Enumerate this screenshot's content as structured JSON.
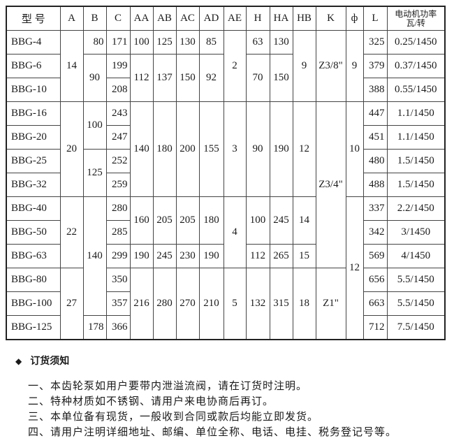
{
  "headers": [
    "型 号",
    "A",
    "B",
    "C",
    "AA",
    "AB",
    "AC",
    "AD",
    "AE",
    "H",
    "HA",
    "HB",
    "K",
    "ф",
    "L",
    "电动机功率",
    "瓦/转"
  ],
  "models": [
    "BBG-4",
    "BBG-6",
    "BBG-10",
    "BBG-16",
    "BBG-20",
    "BBG-25",
    "BBG-32",
    "BBG-40",
    "BBG-50",
    "BBG-63",
    "BBG-80",
    "BBG-100",
    "BBG-125"
  ],
  "A": [
    "14",
    "20",
    "22",
    "27"
  ],
  "B": [
    "80",
    "90",
    "100",
    "125",
    "140",
    "178"
  ],
  "C": [
    "171",
    "199",
    "208",
    "243",
    "247",
    "252",
    "259",
    "280",
    "285",
    "299",
    "350",
    "357",
    "366"
  ],
  "AA": [
    "100",
    "112",
    "140",
    "160",
    "190",
    "216"
  ],
  "AB": [
    "125",
    "137",
    "180",
    "205",
    "245",
    "280"
  ],
  "AC": [
    "130",
    "150",
    "200",
    "205",
    "230",
    "270"
  ],
  "AD": [
    "85",
    "92",
    "155",
    "180",
    "190",
    "210"
  ],
  "AE": [
    "2",
    "3",
    "4",
    "5"
  ],
  "H": [
    "63",
    "70",
    "90",
    "100",
    "112",
    "132"
  ],
  "HA": [
    "130",
    "150",
    "190",
    "245",
    "265",
    "315"
  ],
  "HB": [
    "9",
    "12",
    "14",
    "15",
    "18"
  ],
  "K": [
    "Z3/8\"",
    "Z3/4\"",
    "Z1\""
  ],
  "phi": [
    "9",
    "10",
    "12"
  ],
  "L": [
    "325",
    "379",
    "388",
    "447",
    "451",
    "480",
    "488",
    "337",
    "342",
    "569",
    "656",
    "663",
    "712"
  ],
  "power": [
    "0.25/1450",
    "0.37/1450",
    "0.55/1450",
    "1.1/1450",
    "1.1/1450",
    "1.5/1450",
    "1.5/1450",
    "2.2/1450",
    "3/1450",
    "4/1450",
    "5.5/1450",
    "5.5/1450",
    "7.5/1450"
  ],
  "notes": {
    "title": "订货须知",
    "bullet_icon": "diamond-icon",
    "items": [
      "一、本齿轮泵如用户要带内泄溢流阀，请在订货时注明。",
      "二、特种材质如不锈钢、请用户来电协商后再订。",
      "三、本单位备有现货，一般收到合同或款后均能立即发货。",
      "四、请用户注明详细地址、邮编、单位全称、电话、电挂、税务登记号等。"
    ]
  }
}
